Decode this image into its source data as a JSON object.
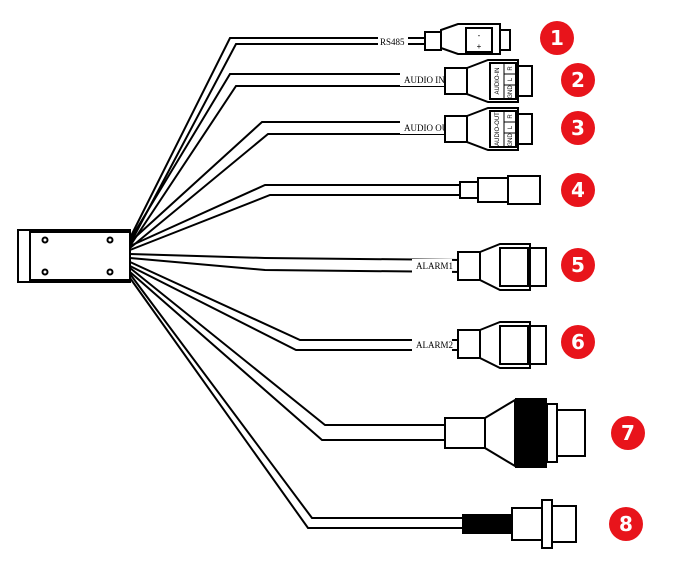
{
  "badge_color": "#e8141b",
  "cables": [
    {
      "number": "1",
      "label": "RS485",
      "pins": [
        "-",
        "+"
      ]
    },
    {
      "number": "2",
      "label": "AUDIO IN",
      "pins": [
        "AUDIO-IN",
        "R",
        "L",
        "GND"
      ]
    },
    {
      "number": "3",
      "label": "AUDIO OUT",
      "pins": [
        "AUDIO-OUT",
        "R",
        "L",
        "GND"
      ]
    },
    {
      "number": "4",
      "label": ""
    },
    {
      "number": "5",
      "label": "ALARM1"
    },
    {
      "number": "6",
      "label": "ALARM2"
    },
    {
      "number": "7",
      "label": ""
    },
    {
      "number": "8",
      "label": ""
    }
  ]
}
